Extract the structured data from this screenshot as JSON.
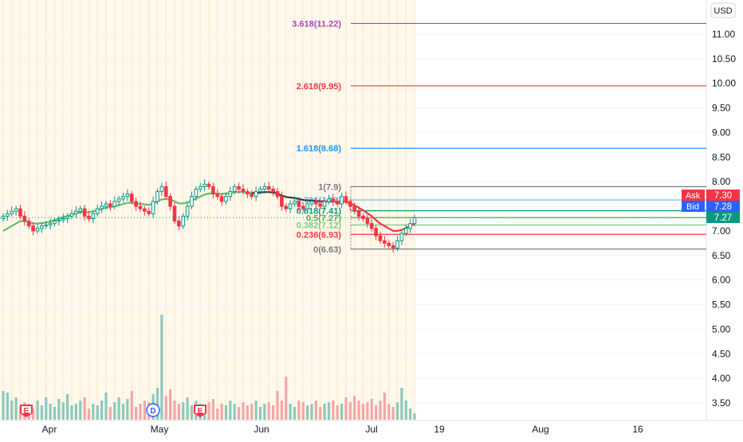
{
  "currency_button": "USD",
  "quotes": {
    "ask_label": "Ask",
    "ask_value": "7.30",
    "ask_color": "#f23645",
    "bid_label": "Bid",
    "bid_value": "7.28",
    "bid_color": "#2962ff",
    "last_value": "7.27",
    "last_color": "#089981"
  },
  "chart_data": {
    "type": "candlestick",
    "price_axis": {
      "ticks": [
        "11.00",
        "10.50",
        "10.00",
        "9.50",
        "9.00",
        "8.50",
        "8.00",
        "7.50",
        "7.00",
        "6.50",
        "6.00",
        "5.50",
        "5.00",
        "4.50",
        "4.00",
        "3.50"
      ],
      "range": [
        3.3,
        11.5
      ]
    },
    "time_axis": {
      "labels": [
        "Apr",
        "May",
        "Jun",
        "Jul",
        "19",
        "Aug",
        "16"
      ]
    },
    "fib_levels": [
      {
        "label": "3.618(11.22)",
        "price": 11.22,
        "color": "#ab47bc"
      },
      {
        "label": "2.618(9.95)",
        "price": 9.95,
        "color": "#f23645"
      },
      {
        "label": "1.618(8.68)",
        "price": 8.68,
        "color": "#2196f3"
      },
      {
        "label": "1(7.9)",
        "price": 7.9,
        "color": "#787b86"
      },
      {
        "label": "0.786(7.63)",
        "price": 7.63,
        "color": "#64b5f6"
      },
      {
        "label": "0.618(7.41)",
        "price": 7.41,
        "color": "#089981"
      },
      {
        "label": "0.5(7.27)",
        "price": 7.27,
        "color": "#4caf50"
      },
      {
        "label": "0.382(7.12)",
        "price": 7.12,
        "color": "#81c784"
      },
      {
        "label": "0.236(6.93)",
        "price": 6.93,
        "color": "#f23645"
      },
      {
        "label": "0(6.63)",
        "price": 6.63,
        "color": "#787b86"
      }
    ],
    "event_markers": [
      {
        "label": "E",
        "kind": "earnings",
        "color": "#f23645"
      },
      {
        "label": "D",
        "kind": "dividend",
        "color": "#2962ff"
      },
      {
        "label": "E",
        "kind": "earnings",
        "color": "#f23645"
      }
    ],
    "close_series": [
      7.3,
      7.35,
      7.4,
      7.45,
      7.3,
      7.2,
      7.1,
      7.0,
      7.05,
      7.1,
      7.12,
      7.15,
      7.2,
      7.22,
      7.25,
      7.3,
      7.35,
      7.4,
      7.45,
      7.3,
      7.25,
      7.35,
      7.45,
      7.5,
      7.55,
      7.5,
      7.6,
      7.65,
      7.7,
      7.75,
      7.6,
      7.5,
      7.45,
      7.4,
      7.35,
      7.6,
      7.8,
      7.9,
      7.7,
      7.5,
      7.2,
      7.1,
      7.3,
      7.5,
      7.7,
      7.85,
      7.9,
      7.95,
      7.9,
      7.75,
      7.7,
      7.6,
      7.7,
      7.8,
      7.9,
      7.85,
      7.8,
      7.75,
      7.7,
      7.8,
      7.85,
      7.9,
      7.85,
      7.8,
      7.7,
      7.5,
      7.45,
      7.55,
      7.6,
      7.5,
      7.45,
      7.55,
      7.6,
      7.55,
      7.5,
      7.6,
      7.65,
      7.6,
      7.55,
      7.7,
      7.6,
      7.5,
      7.4,
      7.3,
      7.25,
      7.15,
      7.05,
      6.9,
      6.8,
      6.75,
      6.7,
      6.65,
      6.8,
      6.95,
      7.05,
      7.15,
      7.27
    ],
    "ma_series": [
      7.0,
      7.05,
      7.1,
      7.15,
      7.2,
      7.2,
      7.18,
      7.15,
      7.15,
      7.16,
      7.17,
      7.19,
      7.22,
      7.25,
      7.28,
      7.3,
      7.33,
      7.36,
      7.38,
      7.38,
      7.38,
      7.4,
      7.42,
      7.45,
      7.47,
      7.48,
      7.5,
      7.52,
      7.55,
      7.57,
      7.57,
      7.56,
      7.55,
      7.54,
      7.53,
      7.55,
      7.6,
      7.64,
      7.65,
      7.64,
      7.6,
      7.56,
      7.56,
      7.58,
      7.62,
      7.66,
      7.7,
      7.74,
      7.76,
      7.76,
      7.76,
      7.75,
      7.76,
      7.77,
      7.79,
      7.79,
      7.79,
      7.78,
      7.77,
      7.77,
      7.78,
      7.79,
      7.79,
      7.78,
      7.76,
      7.72,
      7.69,
      7.68,
      7.67,
      7.65,
      7.63,
      7.62,
      7.62,
      7.61,
      7.6,
      7.6,
      7.61,
      7.6,
      7.59,
      7.6,
      7.59,
      7.56,
      7.52,
      7.47,
      7.42,
      7.36,
      7.3,
      7.22,
      7.15,
      7.1,
      7.05,
      7.0,
      7.0,
      7.02,
      7.06,
      7.1,
      7.15
    ],
    "volume_series": [
      0.9,
      0.85,
      0.6,
      0.7,
      0.4,
      0.55,
      0.5,
      0.35,
      0.6,
      0.45,
      0.7,
      0.5,
      0.4,
      0.65,
      0.55,
      0.8,
      0.45,
      0.5,
      0.6,
      0.7,
      0.35,
      0.5,
      0.45,
      0.6,
      0.85,
      0.4,
      0.55,
      0.7,
      0.5,
      0.65,
      0.9,
      0.4,
      0.5,
      0.6,
      0.55,
      0.8,
      1.0,
      3.3,
      0.75,
      0.95,
      0.6,
      0.5,
      0.55,
      0.7,
      0.45,
      0.6,
      0.5,
      0.4,
      0.55,
      0.65,
      0.35,
      0.5,
      0.45,
      0.6,
      0.5,
      0.4,
      0.55,
      0.45,
      0.5,
      0.6,
      0.4,
      0.5,
      0.55,
      0.45,
      0.9,
      0.6,
      1.35,
      0.5,
      0.4,
      0.6,
      0.55,
      0.45,
      0.5,
      0.6,
      0.4,
      0.5,
      0.55,
      0.6,
      0.45,
      0.5,
      0.7,
      0.55,
      0.75,
      0.6,
      0.5,
      0.55,
      0.65,
      0.45,
      0.6,
      0.85,
      0.5,
      0.4,
      0.55,
      1.0,
      0.6,
      0.35,
      0.2
    ],
    "moving_average_colors": [
      "#66bb6a",
      "#000000",
      "#f23645"
    ],
    "ylim": [
      3.3,
      11.5
    ]
  }
}
